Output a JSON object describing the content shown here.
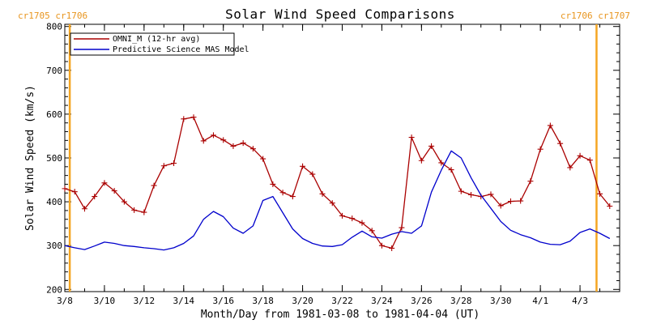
{
  "chart_data": {
    "type": "line",
    "title": "Solar Wind Speed Comparisons",
    "xlabel": "Month/Day from 1981-03-08 to 1981-04-04 (UT)",
    "ylabel": "Solar Wind Speed (km/s)",
    "xlim": [
      "1981-03-08",
      "1981-04-04"
    ],
    "ylim": [
      195,
      805
    ],
    "y_ticks": [
      200,
      300,
      400,
      500,
      600,
      700,
      800
    ],
    "x_tick_labels": [
      "3/8",
      "3/10",
      "3/12",
      "3/14",
      "3/16",
      "3/18",
      "3/20",
      "3/22",
      "3/24",
      "3/26",
      "3/28",
      "3/30",
      "4/1",
      "4/3"
    ],
    "x_tick_dates": [
      "1981-03-08",
      "1981-03-10",
      "1981-03-12",
      "1981-03-14",
      "1981-03-16",
      "1981-03-18",
      "1981-03-20",
      "1981-03-22",
      "1981-03-24",
      "1981-03-26",
      "1981-03-28",
      "1981-03-30",
      "1981-04-01",
      "1981-04-03"
    ],
    "carrington_markers": [
      {
        "label": "cr1705 cr1706",
        "date": "1981-03-08 06:00",
        "color": "#f5a623"
      },
      {
        "label": "cr1706 cr1707",
        "date": "1981-04-03 20:00",
        "color": "#f5a623"
      }
    ],
    "legend": "top-left",
    "grid": false,
    "series": [
      {
        "name": "OMNI_M (12-hr avg)",
        "color": "#aa0000",
        "marker": "plus",
        "points": [
          [
            "1981-03-08 00:00",
            430
          ],
          [
            "1981-03-08 12:00",
            423
          ],
          [
            "1981-03-09 00:00",
            384
          ],
          [
            "1981-03-09 12:00",
            412
          ],
          [
            "1981-03-10 00:00",
            443
          ],
          [
            "1981-03-10 12:00",
            425
          ],
          [
            "1981-03-11 00:00",
            400
          ],
          [
            "1981-03-11 12:00",
            381
          ],
          [
            "1981-03-12 00:00",
            376
          ],
          [
            "1981-03-12 12:00",
            437
          ],
          [
            "1981-03-13 00:00",
            482
          ],
          [
            "1981-03-13 12:00",
            488
          ],
          [
            "1981-03-14 00:00",
            589
          ],
          [
            "1981-03-14 12:00",
            593
          ],
          [
            "1981-03-15 00:00",
            539
          ],
          [
            "1981-03-15 12:00",
            552
          ],
          [
            "1981-03-16 00:00",
            541
          ],
          [
            "1981-03-16 12:00",
            527
          ],
          [
            "1981-03-17 00:00",
            534
          ],
          [
            "1981-03-17 12:00",
            521
          ],
          [
            "1981-03-18 00:00",
            498
          ],
          [
            "1981-03-18 12:00",
            440
          ],
          [
            "1981-03-19 00:00",
            421
          ],
          [
            "1981-03-19 12:00",
            412
          ],
          [
            "1981-03-20 00:00",
            481
          ],
          [
            "1981-03-20 12:00",
            463
          ],
          [
            "1981-03-21 00:00",
            418
          ],
          [
            "1981-03-21 12:00",
            397
          ],
          [
            "1981-03-22 00:00",
            368
          ],
          [
            "1981-03-22 12:00",
            362
          ],
          [
            "1981-03-23 00:00",
            352
          ],
          [
            "1981-03-23 12:00",
            334
          ],
          [
            "1981-03-24 00:00",
            300
          ],
          [
            "1981-03-24 12:00",
            294
          ],
          [
            "1981-03-25 00:00",
            341
          ],
          [
            "1981-03-25 12:00",
            547
          ],
          [
            "1981-03-26 00:00",
            494
          ],
          [
            "1981-03-26 12:00",
            527
          ],
          [
            "1981-03-27 00:00",
            489
          ],
          [
            "1981-03-27 12:00",
            473
          ],
          [
            "1981-03-28 00:00",
            424
          ],
          [
            "1981-03-28 12:00",
            416
          ],
          [
            "1981-03-29 00:00",
            412
          ],
          [
            "1981-03-29 12:00",
            417
          ],
          [
            "1981-03-30 00:00",
            391
          ],
          [
            "1981-03-30 12:00",
            401
          ],
          [
            "1981-03-31 00:00",
            402
          ],
          [
            "1981-03-31 12:00",
            447
          ],
          [
            "1981-04-01 00:00",
            520
          ],
          [
            "1981-04-01 12:00",
            574
          ],
          [
            "1981-04-02 00:00",
            533
          ],
          [
            "1981-04-02 12:00",
            478
          ],
          [
            "1981-04-03 00:00",
            505
          ],
          [
            "1981-04-03 12:00",
            495
          ],
          [
            "1981-04-04 00:00",
            418
          ],
          [
            "1981-04-04 12:00",
            390
          ]
        ]
      },
      {
        "name": "Predictive Science MAS Model",
        "color": "#0000cc",
        "marker": "none",
        "points": [
          [
            "1981-03-08 00:00",
            300
          ],
          [
            "1981-03-08 12:00",
            295
          ],
          [
            "1981-03-09 00:00",
            291
          ],
          [
            "1981-03-09 12:00",
            299
          ],
          [
            "1981-03-10 00:00",
            308
          ],
          [
            "1981-03-10 12:00",
            305
          ],
          [
            "1981-03-11 00:00",
            300
          ],
          [
            "1981-03-11 12:00",
            298
          ],
          [
            "1981-03-12 00:00",
            295
          ],
          [
            "1981-03-12 12:00",
            293
          ],
          [
            "1981-03-13 00:00",
            290
          ],
          [
            "1981-03-13 12:00",
            295
          ],
          [
            "1981-03-14 00:00",
            305
          ],
          [
            "1981-03-14 12:00",
            322
          ],
          [
            "1981-03-15 00:00",
            360
          ],
          [
            "1981-03-15 12:00",
            378
          ],
          [
            "1981-03-16 00:00",
            366
          ],
          [
            "1981-03-16 12:00",
            340
          ],
          [
            "1981-03-17 00:00",
            328
          ],
          [
            "1981-03-17 12:00",
            345
          ],
          [
            "1981-03-18 00:00",
            403
          ],
          [
            "1981-03-18 12:00",
            412
          ],
          [
            "1981-03-19 00:00",
            375
          ],
          [
            "1981-03-19 12:00",
            338
          ],
          [
            "1981-03-20 00:00",
            316
          ],
          [
            "1981-03-20 12:00",
            305
          ],
          [
            "1981-03-21 00:00",
            299
          ],
          [
            "1981-03-21 12:00",
            298
          ],
          [
            "1981-03-22 00:00",
            302
          ],
          [
            "1981-03-22 12:00",
            319
          ],
          [
            "1981-03-23 00:00",
            333
          ],
          [
            "1981-03-23 12:00",
            320
          ],
          [
            "1981-03-24 00:00",
            317
          ],
          [
            "1981-03-24 12:00",
            326
          ],
          [
            "1981-03-25 00:00",
            332
          ],
          [
            "1981-03-25 12:00",
            328
          ],
          [
            "1981-03-26 00:00",
            345
          ],
          [
            "1981-03-26 12:00",
            422
          ],
          [
            "1981-03-27 00:00",
            472
          ],
          [
            "1981-03-27 12:00",
            516
          ],
          [
            "1981-03-28 00:00",
            500
          ],
          [
            "1981-03-28 12:00",
            455
          ],
          [
            "1981-03-29 00:00",
            415
          ],
          [
            "1981-03-29 12:00",
            385
          ],
          [
            "1981-03-30 00:00",
            355
          ],
          [
            "1981-03-30 12:00",
            335
          ],
          [
            "1981-03-31 00:00",
            325
          ],
          [
            "1981-03-31 12:00",
            318
          ],
          [
            "1981-04-01 00:00",
            308
          ],
          [
            "1981-04-01 12:00",
            303
          ],
          [
            "1981-04-02 00:00",
            302
          ],
          [
            "1981-04-02 12:00",
            310
          ],
          [
            "1981-04-03 00:00",
            330
          ],
          [
            "1981-04-03 12:00",
            338
          ],
          [
            "1981-04-04 00:00",
            328
          ],
          [
            "1981-04-04 12:00",
            316
          ]
        ]
      }
    ]
  }
}
